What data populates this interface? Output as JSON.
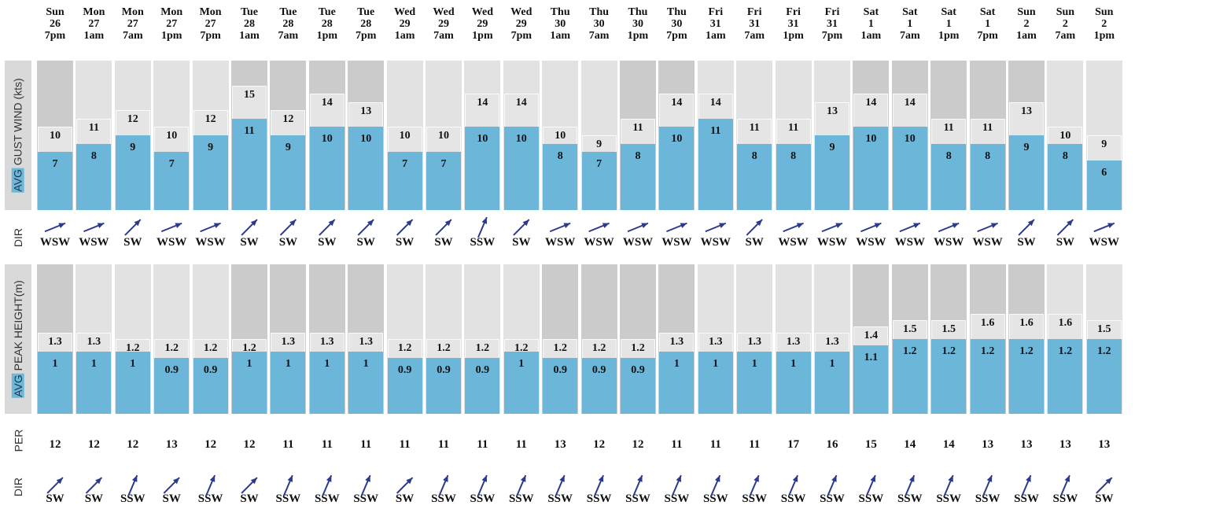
{
  "labels": {
    "wind_hl": "AVG",
    "wind_rest": " GUST WIND (kts)",
    "wave_hl": "AVG",
    "wave_rest": " PEAK HEIGHT(m)",
    "dir1": "DIR",
    "per": "PER",
    "dir2": "DIR"
  },
  "colors": {
    "avg": "#6bb6d9",
    "gust": "#e5e5e5",
    "column_dark": "#cbcbcb",
    "column_light": "#e2e2e2",
    "arrow": "#2b3a8c"
  },
  "chart_data": [
    {
      "type": "bar",
      "categories": [
        {
          "day": "Sun",
          "date": "26",
          "time": "7pm"
        },
        {
          "day": "Mon",
          "date": "27",
          "time": "1am"
        },
        {
          "day": "Mon",
          "date": "27",
          "time": "7am"
        },
        {
          "day": "Mon",
          "date": "27",
          "time": "1pm"
        },
        {
          "day": "Mon",
          "date": "27",
          "time": "7pm"
        },
        {
          "day": "Tue",
          "date": "28",
          "time": "1am"
        },
        {
          "day": "Tue",
          "date": "28",
          "time": "7am"
        },
        {
          "day": "Tue",
          "date": "28",
          "time": "1pm"
        },
        {
          "day": "Tue",
          "date": "28",
          "time": "7pm"
        },
        {
          "day": "Wed",
          "date": "29",
          "time": "1am"
        },
        {
          "day": "Wed",
          "date": "29",
          "time": "7am"
        },
        {
          "day": "Wed",
          "date": "29",
          "time": "1pm"
        },
        {
          "day": "Wed",
          "date": "29",
          "time": "7pm"
        },
        {
          "day": "Thu",
          "date": "30",
          "time": "1am"
        },
        {
          "day": "Thu",
          "date": "30",
          "time": "7am"
        },
        {
          "day": "Thu",
          "date": "30",
          "time": "1pm"
        },
        {
          "day": "Thu",
          "date": "30",
          "time": "7pm"
        },
        {
          "day": "Fri",
          "date": "31",
          "time": "1am"
        },
        {
          "day": "Fri",
          "date": "31",
          "time": "7am"
        },
        {
          "day": "Fri",
          "date": "31",
          "time": "1pm"
        },
        {
          "day": "Fri",
          "date": "31",
          "time": "7pm"
        },
        {
          "day": "Sat",
          "date": "1",
          "time": "1am"
        },
        {
          "day": "Sat",
          "date": "1",
          "time": "7am"
        },
        {
          "day": "Sat",
          "date": "1",
          "time": "1pm"
        },
        {
          "day": "Sat",
          "date": "1",
          "time": "7pm"
        },
        {
          "day": "Sun",
          "date": "2",
          "time": "1am"
        },
        {
          "day": "Sun",
          "date": "2",
          "time": "7am"
        },
        {
          "day": "Sun",
          "date": "2",
          "time": "1pm"
        }
      ],
      "ylim": [
        0,
        18
      ],
      "series": [
        {
          "name": "AVG",
          "values": [
            7,
            8,
            9,
            7,
            9,
            11,
            9,
            10,
            10,
            7,
            7,
            10,
            10,
            8,
            7,
            8,
            10,
            11,
            8,
            8,
            9,
            10,
            10,
            8,
            8,
            9,
            8,
            6
          ]
        },
        {
          "name": "GUST",
          "values": [
            10,
            11,
            12,
            10,
            12,
            15,
            12,
            14,
            13,
            10,
            10,
            14,
            14,
            10,
            9,
            11,
            14,
            14,
            11,
            11,
            13,
            14,
            14,
            11,
            11,
            13,
            10,
            9
          ]
        }
      ],
      "column_shade": [
        "dark",
        "light",
        "light",
        "light",
        "light",
        "dark",
        "dark",
        "dark",
        "dark",
        "light",
        "light",
        "light",
        "light",
        "light",
        "light",
        "dark",
        "dark",
        "light",
        "light",
        "light",
        "light",
        "dark",
        "dark",
        "dark",
        "dark",
        "dark",
        "light",
        "light"
      ],
      "dir_text": [
        "WSW",
        "WSW",
        "SW",
        "WSW",
        "WSW",
        "SW",
        "SW",
        "SW",
        "SW",
        "SW",
        "SW",
        "SSW",
        "SW",
        "WSW",
        "WSW",
        "WSW",
        "WSW",
        "WSW",
        "SW",
        "WSW",
        "WSW",
        "WSW",
        "WSW",
        "WSW",
        "WSW",
        "SW",
        "SW",
        "WSW"
      ],
      "dir_angle": [
        248,
        248,
        225,
        248,
        248,
        225,
        225,
        225,
        225,
        225,
        225,
        203,
        225,
        248,
        248,
        248,
        248,
        248,
        225,
        248,
        248,
        248,
        248,
        248,
        248,
        225,
        225,
        248
      ]
    },
    {
      "type": "bar",
      "ylim": [
        0,
        2.4
      ],
      "series": [
        {
          "name": "AVG",
          "values": [
            1,
            1,
            1,
            0.9,
            0.9,
            1,
            1,
            1,
            1,
            0.9,
            0.9,
            0.9,
            1,
            0.9,
            0.9,
            0.9,
            1,
            1,
            1,
            1,
            1,
            1.1,
            1.2,
            1.2,
            1.2,
            1.2,
            1.2,
            1.2
          ]
        },
        {
          "name": "PEAK",
          "values": [
            1.3,
            1.3,
            1.2,
            1.2,
            1.2,
            1.2,
            1.3,
            1.3,
            1.3,
            1.2,
            1.2,
            1.2,
            1.2,
            1.2,
            1.2,
            1.2,
            1.3,
            1.3,
            1.3,
            1.3,
            1.3,
            1.4,
            1.5,
            1.5,
            1.6,
            1.6,
            1.6,
            1.5
          ]
        }
      ],
      "column_shade": [
        "dark",
        "light",
        "light",
        "light",
        "light",
        "dark",
        "dark",
        "dark",
        "dark",
        "light",
        "light",
        "light",
        "light",
        "dark",
        "dark",
        "dark",
        "dark",
        "light",
        "light",
        "light",
        "light",
        "dark",
        "dark",
        "dark",
        "dark",
        "dark",
        "light",
        "light"
      ],
      "per": [
        "12",
        "12",
        "12",
        "13",
        "12",
        "12",
        "11",
        "11",
        "11",
        "11",
        "11",
        "11",
        "11",
        "13",
        "12",
        "12",
        "11",
        "11",
        "11",
        "17",
        "16",
        "15",
        "14",
        "14",
        "13",
        "13",
        "13",
        "13"
      ],
      "dir_text": [
        "SW",
        "SW",
        "SSW",
        "SW",
        "SSW",
        "SW",
        "SSW",
        "SSW",
        "SSW",
        "SW",
        "SSW",
        "SSW",
        "SSW",
        "SSW",
        "SSW",
        "SSW",
        "SSW",
        "SSW",
        "SSW",
        "SSW",
        "SSW",
        "SSW",
        "SSW",
        "SSW",
        "SSW",
        "SSW",
        "SSW",
        "SW"
      ],
      "dir_angle": [
        225,
        225,
        203,
        225,
        203,
        225,
        203,
        203,
        203,
        225,
        203,
        203,
        203,
        203,
        203,
        203,
        203,
        203,
        203,
        203,
        203,
        203,
        203,
        203,
        203,
        203,
        203,
        225
      ]
    }
  ]
}
